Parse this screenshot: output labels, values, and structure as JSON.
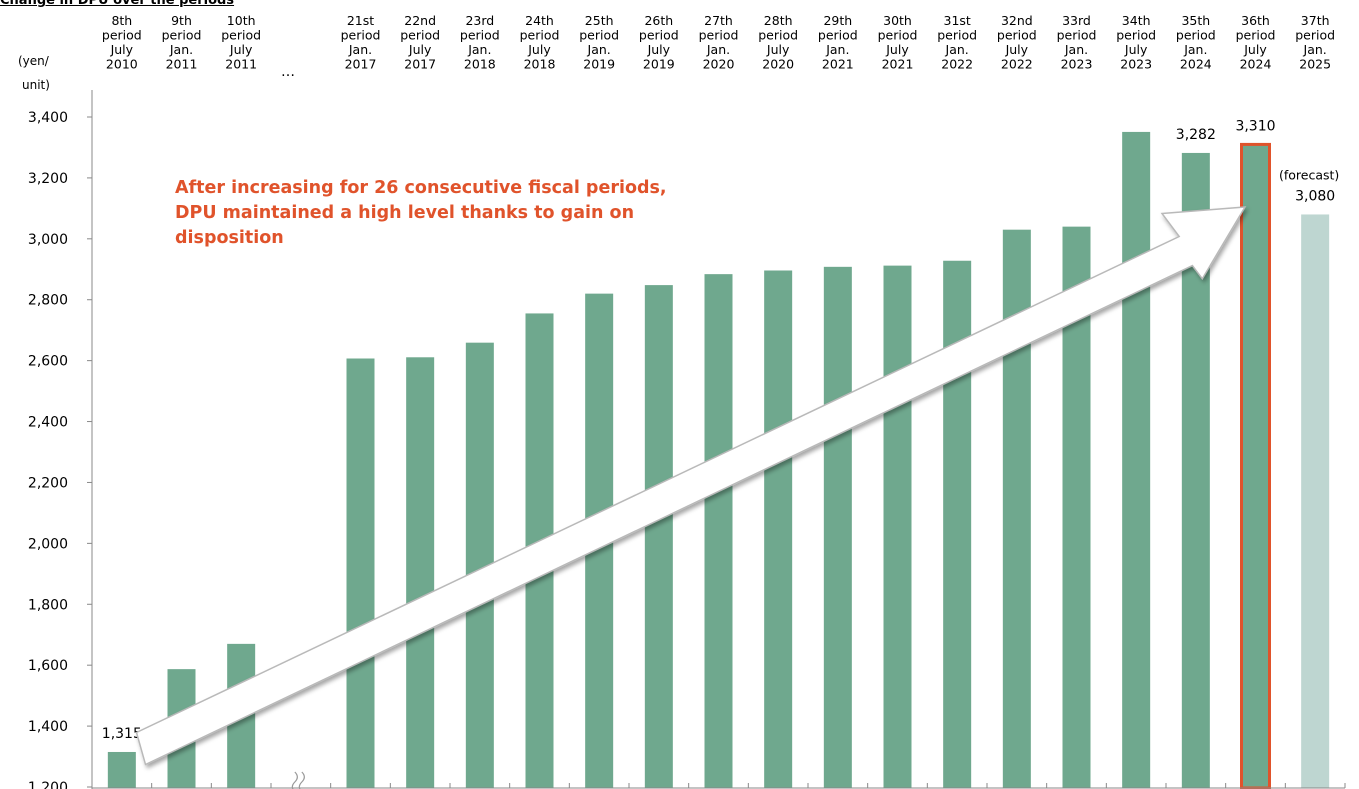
{
  "header_text": "Change in DPU over the periods",
  "unit_label": [
    "(yen/",
    "unit)"
  ],
  "ellipsis": "…",
  "annotation": [
    "After increasing for 26 consecutive fiscal periods,",
    "DPU maintained a high level thanks to gain on",
    "disposition"
  ],
  "colors": {
    "bar": "#6fa88e",
    "forecast_bar": "#bed6d1",
    "highlight": "#e0532b",
    "axis": "#888888",
    "annotation": "#e0532b"
  },
  "chart_data": {
    "type": "bar",
    "title": "",
    "xlabel": "",
    "ylabel": "(yen/unit)",
    "ylim": [
      1200,
      3400
    ],
    "yticks": [
      1200,
      1400,
      1600,
      1800,
      2000,
      2200,
      2400,
      2600,
      2800,
      3000,
      3200,
      3400
    ],
    "axis_break_after": "10th period July 2011",
    "categories": [
      {
        "lines": [
          "8th",
          "period",
          "July",
          "2010"
        ]
      },
      {
        "lines": [
          "9th",
          "period",
          "Jan.",
          "2011"
        ]
      },
      {
        "lines": [
          "10th",
          "period",
          "July",
          "2011"
        ]
      },
      {
        "lines": [
          "",
          "",
          "",
          ""
        ],
        "gap": true
      },
      {
        "lines": [
          "21st",
          "period",
          "Jan.",
          "2017"
        ]
      },
      {
        "lines": [
          "22nd",
          "period",
          "July",
          "2017"
        ]
      },
      {
        "lines": [
          "23rd",
          "period",
          "Jan.",
          "2018"
        ]
      },
      {
        "lines": [
          "24th",
          "period",
          "July",
          "2018"
        ]
      },
      {
        "lines": [
          "25th",
          "period",
          "Jan.",
          "2019"
        ]
      },
      {
        "lines": [
          "26th",
          "period",
          "July",
          "2019"
        ]
      },
      {
        "lines": [
          "27th",
          "period",
          "Jan.",
          "2020"
        ]
      },
      {
        "lines": [
          "28th",
          "period",
          "July",
          "2020"
        ]
      },
      {
        "lines": [
          "29th",
          "period",
          "Jan.",
          "2021"
        ]
      },
      {
        "lines": [
          "30th",
          "period",
          "July",
          "2021"
        ]
      },
      {
        "lines": [
          "31st",
          "period",
          "Jan.",
          "2022"
        ]
      },
      {
        "lines": [
          "32nd",
          "period",
          "July",
          "2022"
        ]
      },
      {
        "lines": [
          "33rd",
          "period",
          "Jan.",
          "2023"
        ]
      },
      {
        "lines": [
          "34th",
          "period",
          "July",
          "2023"
        ]
      },
      {
        "lines": [
          "35th",
          "period",
          "Jan.",
          "2024"
        ]
      },
      {
        "lines": [
          "36th",
          "period",
          "July",
          "2024"
        ]
      },
      {
        "lines": [
          "37th",
          "period",
          "Jan.",
          "2025"
        ]
      }
    ],
    "values": [
      1315,
      1587,
      1670,
      null,
      2607,
      2611,
      2659,
      2755,
      2820,
      2848,
      2884,
      2896,
      2908,
      2912,
      2928,
      3030,
      3040,
      3351,
      3282,
      3310,
      3080
    ],
    "labels": [
      "1,315",
      "",
      "",
      "",
      "",
      "",
      "",
      "",
      "",
      "",
      "",
      "",
      "",
      "",
      "",
      "",
      "",
      "",
      "3,282",
      "3,310",
      "3,080"
    ],
    "highlight_index": 19,
    "forecast_index": 20,
    "forecast_label": "(forecast)"
  }
}
